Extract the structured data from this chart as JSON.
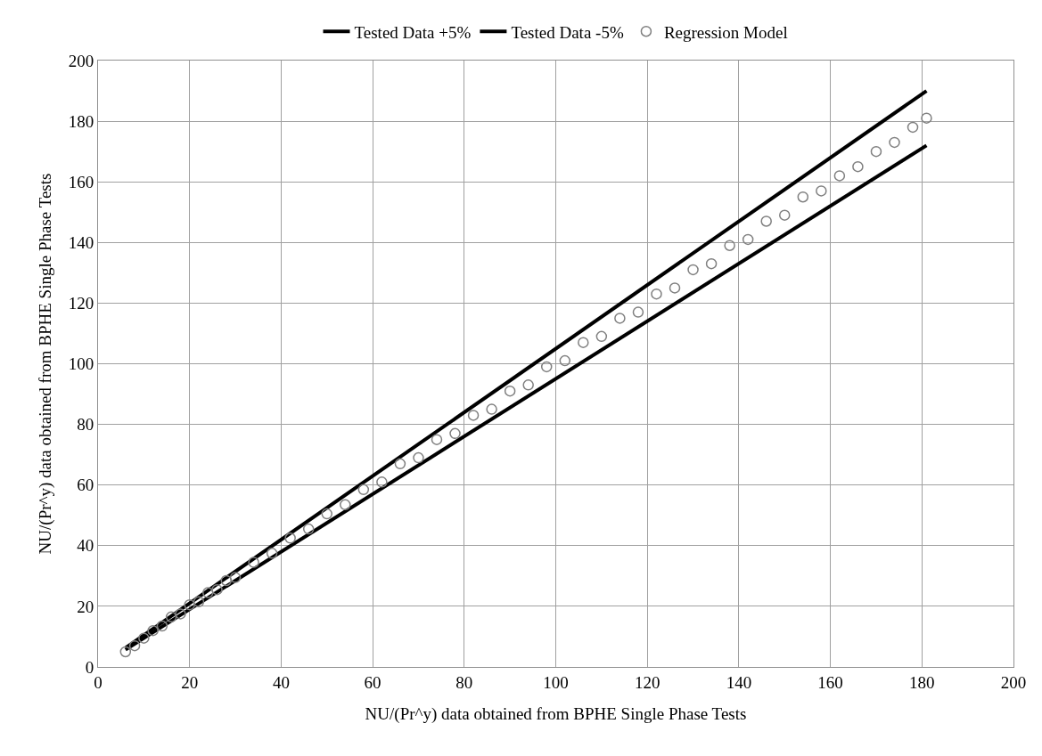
{
  "chart_data": {
    "type": "scatter",
    "xlabel": "NU/(Pr^y) data obtained from BPHE Single Phase Tests",
    "ylabel": "NU/(Pr^y) data obtained from BPHE Single Phase Tests",
    "xlim": [
      0,
      200
    ],
    "ylim": [
      0,
      200
    ],
    "xticks": [
      0,
      20,
      40,
      60,
      80,
      100,
      120,
      140,
      160,
      180,
      200
    ],
    "yticks": [
      0,
      20,
      40,
      60,
      80,
      100,
      120,
      140,
      160,
      180,
      200
    ],
    "grid": true,
    "legend": "top",
    "marker": "circle",
    "series": [
      {
        "name": "Tested Data +5%",
        "type": "line",
        "color": "#000000",
        "x": [
          6,
          181
        ],
        "values": [
          6.3,
          190
        ],
        "line_style": "solid",
        "marker": "none"
      },
      {
        "name": "Tested Data -5%",
        "type": "line",
        "color": "#000000",
        "x": [
          6,
          181
        ],
        "values": [
          5.7,
          172
        ],
        "line_style": "solid",
        "marker": "none"
      },
      {
        "name": "Regression Model",
        "color": "#808080",
        "x": [
          6,
          8,
          10,
          12,
          14,
          16,
          18,
          20,
          22,
          24,
          26,
          28,
          30,
          34,
          38,
          42,
          46,
          50,
          54,
          58,
          62,
          66,
          70,
          74,
          78,
          82,
          86,
          90,
          94,
          98,
          102,
          106,
          110,
          114,
          118,
          122,
          126,
          130,
          134,
          138,
          142,
          146,
          150,
          154,
          158,
          162,
          166,
          170,
          174,
          178,
          181
        ],
        "values": [
          5,
          7,
          9.5,
          12,
          13.5,
          16.5,
          17.5,
          20.5,
          21.5,
          24.5,
          25.5,
          28.5,
          29.5,
          34.5,
          37.5,
          42.5,
          45.5,
          50.5,
          53.5,
          58.5,
          61,
          67,
          69,
          75,
          77,
          83,
          85,
          91,
          93,
          99,
          101,
          107,
          109,
          115,
          117,
          123,
          125,
          131,
          133,
          139,
          141,
          147,
          149,
          155,
          157,
          162,
          165,
          170,
          173,
          178,
          181
        ]
      }
    ]
  }
}
